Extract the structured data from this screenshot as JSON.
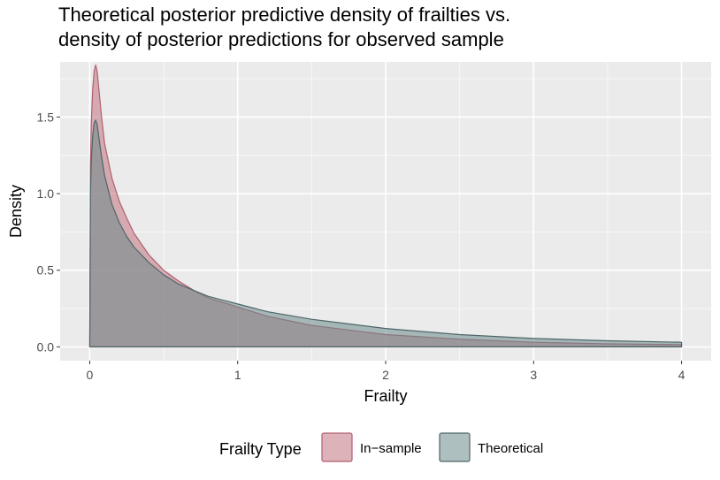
{
  "chart_data": {
    "type": "area",
    "title_lines": [
      "Theoretical posterior predictive density of frailties vs.",
      "density of posterior predictions for observed sample"
    ],
    "xlabel": "Frailty",
    "ylabel": "Density",
    "xlim": [
      -0.2,
      4.2
    ],
    "ylim": [
      -0.09,
      1.86
    ],
    "x_ticks": [
      0,
      1,
      2,
      3,
      4
    ],
    "x_tick_labels": [
      "0",
      "1",
      "2",
      "3",
      "4"
    ],
    "y_ticks": [
      0.0,
      0.5,
      1.0,
      1.5
    ],
    "y_tick_labels": [
      "0.0",
      "0.5",
      "1.0",
      "1.5"
    ],
    "grid": true,
    "legend": {
      "position": "bottom",
      "title": "Frailty Type",
      "entries": [
        "In−sample",
        "Theoretical"
      ]
    },
    "series": [
      {
        "name": "In−sample",
        "fill": "#c2727f",
        "stroke": "#b06070",
        "x": [
          0,
          0.005,
          0.01,
          0.02,
          0.03,
          0.04,
          0.05,
          0.06,
          0.08,
          0.1,
          0.15,
          0.2,
          0.25,
          0.3,
          0.4,
          0.5,
          0.6,
          0.7,
          0.8,
          1.0,
          1.2,
          1.5,
          2.0,
          2.5,
          3.0,
          3.5,
          4.0
        ],
        "y": [
          0,
          1.2,
          1.45,
          1.68,
          1.8,
          1.84,
          1.8,
          1.7,
          1.5,
          1.33,
          1.1,
          0.95,
          0.84,
          0.74,
          0.6,
          0.5,
          0.43,
          0.37,
          0.32,
          0.26,
          0.2,
          0.14,
          0.08,
          0.05,
          0.03,
          0.02,
          0.015
        ]
      },
      {
        "name": "Theoretical",
        "fill": "#6b8a8c",
        "stroke": "#4e6668",
        "x": [
          0,
          0.005,
          0.01,
          0.02,
          0.03,
          0.04,
          0.05,
          0.06,
          0.08,
          0.1,
          0.15,
          0.2,
          0.25,
          0.3,
          0.4,
          0.5,
          0.6,
          0.7,
          0.8,
          1.0,
          1.2,
          1.5,
          2.0,
          2.5,
          3.0,
          3.5,
          4.0
        ],
        "y": [
          0,
          1.0,
          1.2,
          1.38,
          1.46,
          1.48,
          1.45,
          1.38,
          1.24,
          1.12,
          0.93,
          0.81,
          0.72,
          0.65,
          0.55,
          0.47,
          0.41,
          0.37,
          0.33,
          0.28,
          0.23,
          0.18,
          0.12,
          0.08,
          0.055,
          0.04,
          0.03
        ]
      }
    ]
  }
}
